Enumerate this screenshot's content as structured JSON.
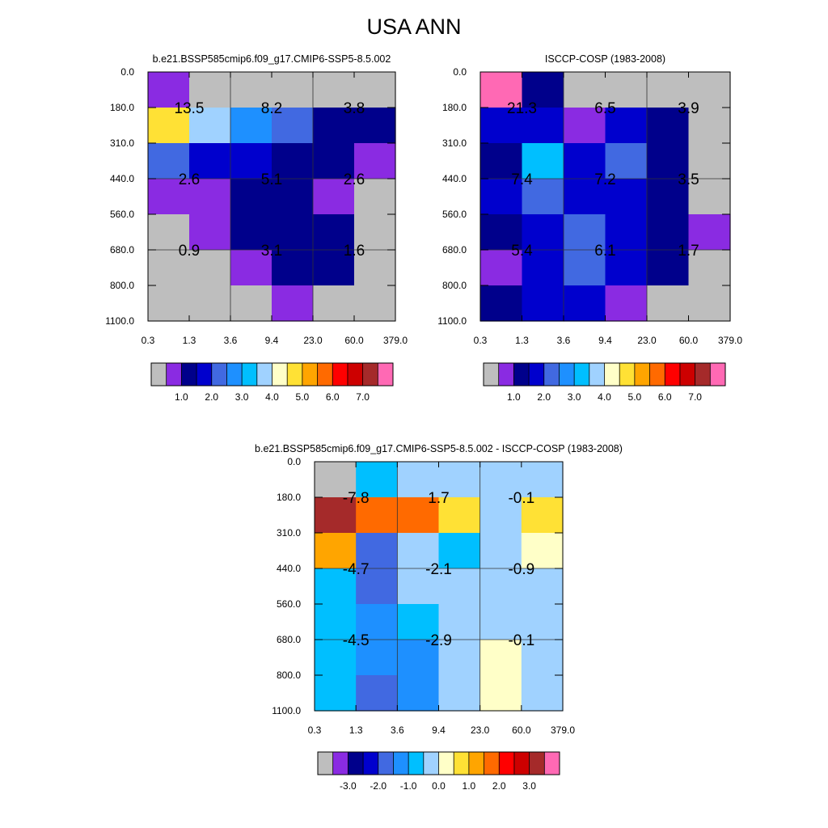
{
  "title": "USA ANN",
  "palettes": {
    "abs": [
      "#bebebe",
      "#8a2be2",
      "#00008b",
      "#0000cd",
      "#4169e1",
      "#1e90ff",
      "#00bfff",
      "#a0d2ff",
      "#ffffc8",
      "#ffe135",
      "#ffa500",
      "#ff6a00",
      "#ff0000",
      "#cd0000",
      "#a52a2a",
      "#ff69b4"
    ],
    "diff": [
      "#bebebe",
      "#8a2be2",
      "#00008b",
      "#0000cd",
      "#4169e1",
      "#1e90ff",
      "#00bfff",
      "#a0d2ff",
      "#ffffc8",
      "#ffe135",
      "#ffa500",
      "#ff6a00",
      "#ff0000",
      "#cd0000",
      "#a52a2a",
      "#ff69b4"
    ]
  },
  "chart_data": [
    {
      "type": "heatmap",
      "title": "b.e21.BSSP585cmip6.f09_g17.CMIP6-SSP5-8.5.002",
      "x_ticks": [
        "0.3",
        "1.3",
        "3.6",
        "9.4",
        "23.0",
        "60.0",
        "379.0"
      ],
      "y_ticks": [
        "0.0",
        "180.0",
        "310.0",
        "440.0",
        "560.0",
        "680.0",
        "800.0",
        "1100.0"
      ],
      "cell_colors": [
        [
          1,
          0,
          0,
          0,
          0,
          0
        ],
        [
          9,
          7,
          5,
          4,
          2,
          2
        ],
        [
          4,
          3,
          3,
          2,
          2,
          1
        ],
        [
          1,
          1,
          2,
          2,
          1,
          0
        ],
        [
          0,
          1,
          2,
          2,
          2,
          0
        ],
        [
          0,
          0,
          1,
          2,
          2,
          0
        ],
        [
          0,
          0,
          0,
          1,
          0,
          0
        ]
      ],
      "labels": [
        "13.5",
        "8.2",
        "3.8",
        "2.6",
        "5.1",
        "2.6",
        "0.9",
        "3.1",
        "1.6"
      ],
      "colorbar_labels": [
        "1.0",
        "2.0",
        "3.0",
        "4.0",
        "5.0",
        "6.0",
        "7.0"
      ]
    },
    {
      "type": "heatmap",
      "title": "ISCCP-COSP (1983-2008)",
      "x_ticks": [
        "0.3",
        "1.3",
        "3.6",
        "9.4",
        "23.0",
        "60.0",
        "379.0"
      ],
      "y_ticks": [
        "0.0",
        "180.0",
        "310.0",
        "440.0",
        "560.0",
        "680.0",
        "800.0",
        "1100.0"
      ],
      "cell_colors": [
        [
          15,
          2,
          0,
          0,
          0,
          0
        ],
        [
          3,
          3,
          1,
          3,
          2,
          0
        ],
        [
          2,
          6,
          3,
          4,
          2,
          0
        ],
        [
          3,
          4,
          3,
          3,
          2,
          0
        ],
        [
          2,
          3,
          4,
          3,
          2,
          1
        ],
        [
          1,
          3,
          4,
          3,
          2,
          0
        ],
        [
          2,
          3,
          3,
          1,
          0,
          0
        ]
      ],
      "labels": [
        "21.3",
        "6.5",
        "3.9",
        "7.4",
        "7.2",
        "3.5",
        "5.4",
        "6.1",
        "1.7"
      ],
      "colorbar_labels": [
        "1.0",
        "2.0",
        "3.0",
        "4.0",
        "5.0",
        "6.0",
        "7.0"
      ]
    },
    {
      "type": "heatmap",
      "title": "b.e21.BSSP585cmip6.f09_g17.CMIP6-SSP5-8.5.002 - ISCCP-COSP (1983-2008)",
      "x_ticks": [
        "0.3",
        "1.3",
        "3.6",
        "9.4",
        "23.0",
        "60.0",
        "379.0"
      ],
      "y_ticks": [
        "0.0",
        "180.0",
        "310.0",
        "440.0",
        "560.0",
        "680.0",
        "800.0",
        "1100.0"
      ],
      "cell_colors": [
        [
          0,
          6,
          7,
          7,
          7,
          7
        ],
        [
          14,
          11,
          11,
          9,
          7,
          9
        ],
        [
          10,
          4,
          7,
          6,
          7,
          8
        ],
        [
          6,
          4,
          7,
          7,
          7,
          7
        ],
        [
          6,
          5,
          6,
          7,
          7,
          7
        ],
        [
          6,
          5,
          5,
          7,
          8,
          7
        ],
        [
          6,
          4,
          5,
          7,
          8,
          7
        ]
      ],
      "labels": [
        "-7.8",
        "1.7",
        "-0.1",
        "-4.7",
        "-2.1",
        "-0.9",
        "-4.5",
        "-2.9",
        "-0.1"
      ],
      "colorbar_labels": [
        "-3.0",
        "-2.0",
        "-1.0",
        "0.0",
        "1.0",
        "2.0",
        "3.0"
      ]
    }
  ]
}
